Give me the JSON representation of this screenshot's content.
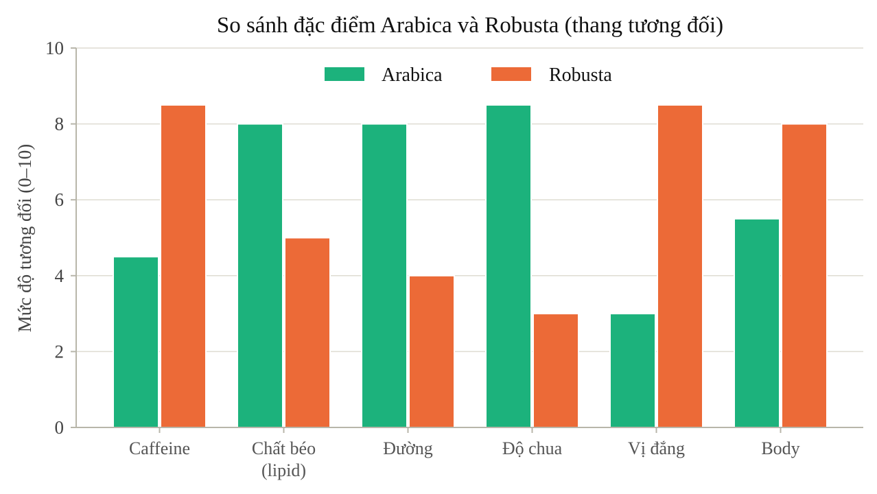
{
  "chart_data": {
    "type": "bar",
    "title": "So sánh đặc điểm Arabica và Robusta (thang tương đối)",
    "xlabel": "",
    "ylabel": "Mức độ tương đối (0–10)",
    "ylim": [
      0,
      10
    ],
    "yticks": [
      0,
      2,
      4,
      6,
      8,
      10
    ],
    "grid": true,
    "legend": "top-center",
    "categories": [
      [
        "Caffeine"
      ],
      [
        "Chất béo",
        "(lipid)"
      ],
      [
        "Đường"
      ],
      [
        "Độ chua"
      ],
      [
        "Vị đắng"
      ],
      [
        "Body"
      ]
    ],
    "series": [
      {
        "name": "Arabica",
        "color": "#1cb27c",
        "values": [
          4.5,
          8.0,
          8.0,
          8.5,
          3.0,
          5.5
        ]
      },
      {
        "name": "Robusta",
        "color": "#ec6a37",
        "values": [
          8.5,
          5.0,
          4.0,
          3.0,
          8.5,
          8.0
        ]
      }
    ]
  }
}
